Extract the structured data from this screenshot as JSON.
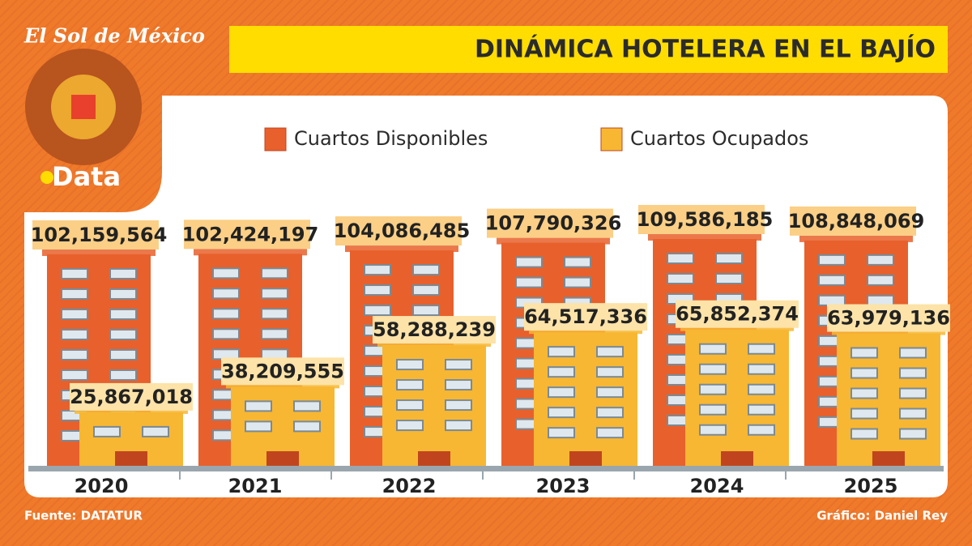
{
  "chart_data": {
    "type": "bar",
    "brand": "El Sol de México",
    "logo_text": "Data",
    "title": "DINÁMICA HOTELERA EN EL BAJÍO",
    "categories": [
      "2020",
      "2021",
      "2022",
      "2023",
      "2024",
      "2025"
    ],
    "series": [
      {
        "name": "Cuartos Disponibles",
        "color": "#e8602c",
        "values": [
          102159564,
          102424197,
          104086485,
          107790326,
          109586185,
          108848069
        ],
        "value_labels": [
          "102,159,564",
          "102,424,197",
          "104,086,485",
          "107,790,326",
          "109,586,185",
          "108,848,069"
        ]
      },
      {
        "name": "Cuartos Ocupados",
        "color": "#f7b733",
        "values": [
          25867018,
          38209555,
          58288239,
          64517336,
          65852374,
          63979136
        ],
        "value_labels": [
          "25,867,018",
          "38,209,555",
          "58,288,239",
          "64,517,336",
          "65,852,374",
          "63,979,136"
        ]
      }
    ],
    "source": "Fuente: DATATUR",
    "credit": "Gráfico: Daniel Rey"
  }
}
